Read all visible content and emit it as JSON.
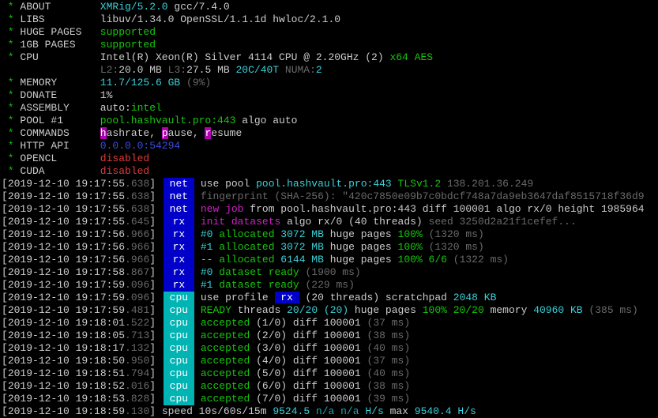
{
  "colors": {
    "tag_net_rx_bg": "#0000c8",
    "tag_cpu_bg": "#00b4b4",
    "green": "#16c60c",
    "cyan": "#3ad0d8",
    "magenta": "#d020c8",
    "red": "#e03a3a",
    "blue": "#3b4be0",
    "gray": "#6a6a6a"
  },
  "header": [
    {
      "label": "ABOUT",
      "segs": [
        {
          "t": "XMRig/5.2.0",
          "c": "c"
        },
        {
          "t": " gcc/7.4.0",
          "c": "w"
        }
      ]
    },
    {
      "label": "LIBS",
      "segs": [
        {
          "t": "libuv/1.34.0 OpenSSL/1.1.1d hwloc/2.1.0",
          "c": "w"
        }
      ]
    },
    {
      "label": "HUGE PAGES",
      "segs": [
        {
          "t": "supported",
          "c": "g"
        }
      ]
    },
    {
      "label": "1GB PAGES",
      "segs": [
        {
          "t": "supported",
          "c": "g"
        }
      ]
    },
    {
      "label": "CPU",
      "segs": [
        {
          "t": "Intel(R) Xeon(R) Silver 4114 CPU @ 2.20GHz (2)",
          "c": "w"
        },
        {
          "t": " x64 AES",
          "c": "g"
        }
      ]
    },
    {
      "label": "",
      "segs": [
        {
          "t": "L2:",
          "c": "gr"
        },
        {
          "t": "20.0 MB ",
          "c": "w"
        },
        {
          "t": "L3:",
          "c": "gr"
        },
        {
          "t": "27.5 MB ",
          "c": "w"
        },
        {
          "t": "20C/40T ",
          "c": "c"
        },
        {
          "t": "NUMA:",
          "c": "gr"
        },
        {
          "t": "2",
          "c": "c"
        }
      ]
    },
    {
      "label": "MEMORY",
      "segs": [
        {
          "t": "11.7/125.6 GB",
          "c": "c"
        },
        {
          "t": " (9%)",
          "c": "gr"
        }
      ]
    },
    {
      "label": "DONATE",
      "segs": [
        {
          "t": "1%",
          "c": "w"
        }
      ]
    },
    {
      "label": "ASSEMBLY",
      "segs": [
        {
          "t": "auto:",
          "c": "w"
        },
        {
          "t": "intel",
          "c": "g"
        }
      ]
    },
    {
      "label": "POOL #1",
      "segs": [
        {
          "t": "pool.hashvault.pro:443",
          "c": "g"
        },
        {
          "t": " algo auto",
          "c": "w"
        }
      ]
    },
    {
      "label": "COMMANDS",
      "segs": [
        {
          "t": "h",
          "c": "hl"
        },
        {
          "t": "ashrate, ",
          "c": "w"
        },
        {
          "t": "p",
          "c": "hl"
        },
        {
          "t": "ause, ",
          "c": "w"
        },
        {
          "t": "r",
          "c": "hl"
        },
        {
          "t": "esume",
          "c": "w"
        }
      ]
    },
    {
      "label": "HTTP API",
      "segs": [
        {
          "t": "0.0.0.0:54294",
          "c": "b"
        }
      ]
    },
    {
      "label": "OPENCL",
      "segs": [
        {
          "t": "disabled",
          "c": "r"
        }
      ]
    },
    {
      "label": "CUDA",
      "segs": [
        {
          "t": "disabled",
          "c": "r"
        }
      ]
    }
  ],
  "log": [
    {
      "time": "2019-12-10 19:17:55",
      "ms": ".638",
      "tag": "net",
      "segs": [
        {
          "t": "use pool ",
          "c": "w"
        },
        {
          "t": "pool.hashvault.pro:443",
          "c": "c"
        },
        {
          "t": " TLSv1.2",
          "c": "g"
        },
        {
          "t": " 138.201.36.249",
          "c": "gr"
        }
      ]
    },
    {
      "time": "2019-12-10 19:17:55",
      "ms": ".638",
      "tag": "net",
      "segs": [
        {
          "t": "fingerprint (SHA-256): \"420c7850e09b7c0bdcf748a7da9eb3647daf8515718f36d9",
          "c": "gr"
        }
      ]
    },
    {
      "time": "2019-12-10 19:17:55",
      "ms": ".638",
      "tag": "net",
      "segs": [
        {
          "t": "new job",
          "c": "m"
        },
        {
          "t": " from pool.hashvault.pro:443 diff 100001 algo rx/0 height 1985964",
          "c": "w"
        }
      ]
    },
    {
      "time": "2019-12-10 19:17:55",
      "ms": ".645",
      "tag": "rx",
      "segs": [
        {
          "t": "init datasets",
          "c": "m"
        },
        {
          "t": " algo rx/0 (40 threads)",
          "c": "w"
        },
        {
          "t": " seed 3250d2a21f1cefef...",
          "c": "gr"
        }
      ]
    },
    {
      "time": "2019-12-10 19:17:56",
      "ms": ".966",
      "tag": "rx",
      "segs": [
        {
          "t": "#0",
          "c": "c"
        },
        {
          "t": " allocated",
          "c": "g"
        },
        {
          "t": " 3072 MB",
          "c": "c"
        },
        {
          "t": " huge pages",
          "c": "w"
        },
        {
          "t": " 100%",
          "c": "g"
        },
        {
          "t": " (1320 ms)",
          "c": "gr"
        }
      ]
    },
    {
      "time": "2019-12-10 19:17:56",
      "ms": ".966",
      "tag": "rx",
      "segs": [
        {
          "t": "#1",
          "c": "c"
        },
        {
          "t": " allocated",
          "c": "g"
        },
        {
          "t": " 3072 MB",
          "c": "c"
        },
        {
          "t": " huge pages",
          "c": "w"
        },
        {
          "t": " 100%",
          "c": "g"
        },
        {
          "t": " (1320 ms)",
          "c": "gr"
        }
      ]
    },
    {
      "time": "2019-12-10 19:17:56",
      "ms": ".966",
      "tag": "rx",
      "segs": [
        {
          "t": "--",
          "c": "c"
        },
        {
          "t": " allocated",
          "c": "g"
        },
        {
          "t": " 6144 MB",
          "c": "c"
        },
        {
          "t": " huge pages",
          "c": "w"
        },
        {
          "t": " 100% 6/6",
          "c": "g"
        },
        {
          "t": " (1322 ms)",
          "c": "gr"
        }
      ]
    },
    {
      "time": "2019-12-10 19:17:58",
      "ms": ".867",
      "tag": "rx",
      "segs": [
        {
          "t": "#0",
          "c": "c"
        },
        {
          "t": " dataset ready",
          "c": "g"
        },
        {
          "t": " (1900 ms)",
          "c": "gr"
        }
      ]
    },
    {
      "time": "2019-12-10 19:17:59",
      "ms": ".096",
      "tag": "rx",
      "segs": [
        {
          "t": "#1",
          "c": "c"
        },
        {
          "t": " dataset ready",
          "c": "g"
        },
        {
          "t": " (229 ms)",
          "c": "gr"
        }
      ]
    },
    {
      "time": "2019-12-10 19:17:59",
      "ms": ".096",
      "tag": "cpu",
      "segs": [
        {
          "t": "use profile ",
          "c": "w"
        },
        {
          "t": " rx ",
          "c": "inl"
        },
        {
          "t": " (20 threads) scratchpad ",
          "c": "w"
        },
        {
          "t": "2048 KB",
          "c": "c"
        }
      ]
    },
    {
      "time": "2019-12-10 19:17:59",
      "ms": ".481",
      "tag": "cpu",
      "segs": [
        {
          "t": "READY",
          "c": "g"
        },
        {
          "t": " threads ",
          "c": "w"
        },
        {
          "t": "20/20 (20)",
          "c": "c"
        },
        {
          "t": " huge pages ",
          "c": "w"
        },
        {
          "t": "100% 20/20",
          "c": "g"
        },
        {
          "t": " memory ",
          "c": "w"
        },
        {
          "t": "40960 KB",
          "c": "c"
        },
        {
          "t": " (385 ms)",
          "c": "gr"
        }
      ]
    },
    {
      "time": "2019-12-10 19:18:01",
      "ms": ".522",
      "tag": "cpu",
      "segs": [
        {
          "t": "accepted",
          "c": "g"
        },
        {
          "t": " (1/0) diff 100001",
          "c": "w"
        },
        {
          "t": " (37 ms)",
          "c": "gr"
        }
      ]
    },
    {
      "time": "2019-12-10 19:18:05",
      "ms": ".713",
      "tag": "cpu",
      "segs": [
        {
          "t": "accepted",
          "c": "g"
        },
        {
          "t": " (2/0) diff 100001",
          "c": "w"
        },
        {
          "t": " (38 ms)",
          "c": "gr"
        }
      ]
    },
    {
      "time": "2019-12-10 19:18:17",
      "ms": ".132",
      "tag": "cpu",
      "segs": [
        {
          "t": "accepted",
          "c": "g"
        },
        {
          "t": " (3/0) diff 100001",
          "c": "w"
        },
        {
          "t": " (40 ms)",
          "c": "gr"
        }
      ]
    },
    {
      "time": "2019-12-10 19:18:50",
      "ms": ".950",
      "tag": "cpu",
      "segs": [
        {
          "t": "accepted",
          "c": "g"
        },
        {
          "t": " (4/0) diff 100001",
          "c": "w"
        },
        {
          "t": " (37 ms)",
          "c": "gr"
        }
      ]
    },
    {
      "time": "2019-12-10 19:18:51",
      "ms": ".794",
      "tag": "cpu",
      "segs": [
        {
          "t": "accepted",
          "c": "g"
        },
        {
          "t": " (5/0) diff 100001",
          "c": "w"
        },
        {
          "t": " (40 ms)",
          "c": "gr"
        }
      ]
    },
    {
      "time": "2019-12-10 19:18:52",
      "ms": ".016",
      "tag": "cpu",
      "segs": [
        {
          "t": "accepted",
          "c": "g"
        },
        {
          "t": " (6/0) diff 100001",
          "c": "w"
        },
        {
          "t": " (38 ms)",
          "c": "gr"
        }
      ]
    },
    {
      "time": "2019-12-10 19:18:53",
      "ms": ".828",
      "tag": "cpu",
      "segs": [
        {
          "t": "accepted",
          "c": "g"
        },
        {
          "t": " (7/0) diff 100001",
          "c": "w"
        },
        {
          "t": " (39 ms)",
          "c": "gr"
        }
      ]
    },
    {
      "time": "2019-12-10 19:18:59",
      "ms": ".130",
      "tag": "",
      "segs": [
        {
          "t": "speed 10s/60s/15m ",
          "c": "w"
        },
        {
          "t": "9524.5",
          "c": "c"
        },
        {
          "t": " n/a n/a",
          "c": "dc"
        },
        {
          "t": " H/s",
          "c": "c"
        },
        {
          "t": " max ",
          "c": "w"
        },
        {
          "t": "9540.4 H/s",
          "c": "c"
        }
      ]
    }
  ]
}
